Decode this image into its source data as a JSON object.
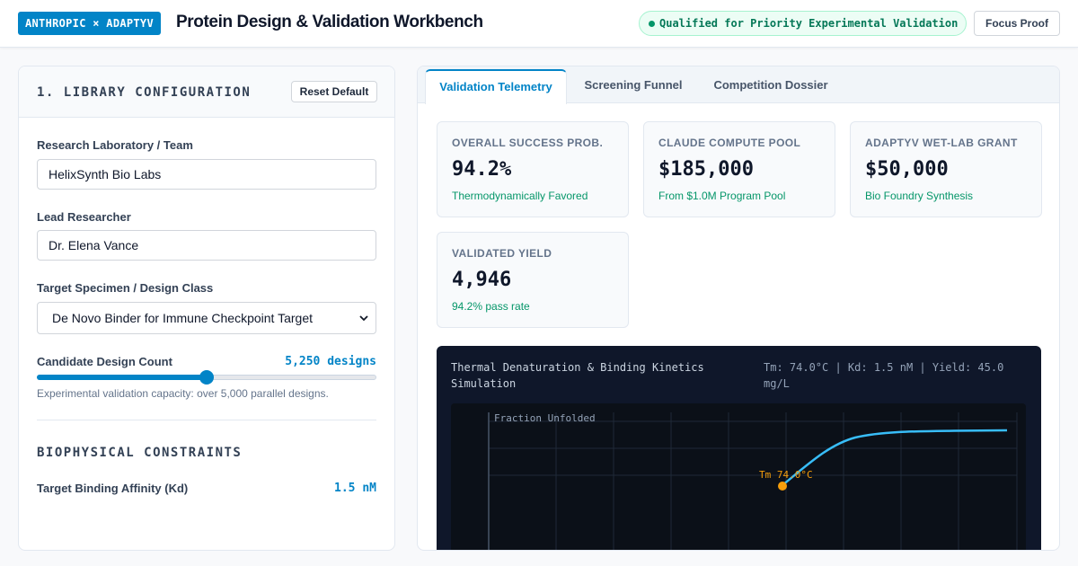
{
  "header": {
    "brand": "ANTHROPIC × ADAPTYV",
    "title": "Protein Design & Validation Workbench",
    "status": "Qualified for Priority Experimental Validation",
    "focus_label": "Focus Proof"
  },
  "library": {
    "title": "1. LIBRARY CONFIGURATION",
    "reset_label": "Reset Default",
    "team_label": "Research Laboratory / Team",
    "team_value": "HelixSynth Bio Labs",
    "researcher_label": "Lead Researcher",
    "researcher_value": "Dr. Elena Vance",
    "target_label": "Target Specimen / Design Class",
    "target_value": "De Novo Binder for Immune Checkpoint Target",
    "count_label": "Candidate Design Count",
    "count_value": "5,250 designs",
    "count_fraction": 0.5,
    "count_hint": "Experimental validation capacity: over 5,000 parallel designs.",
    "constraints_title": "BIOPHYSICAL CONSTRAINTS",
    "kd_label": "Target Binding Affinity (Kd)",
    "kd_value": "1.5 nM"
  },
  "tabs": [
    {
      "label": "Validation Telemetry",
      "active": true
    },
    {
      "label": "Screening Funnel",
      "active": false
    },
    {
      "label": "Competition Dossier",
      "active": false
    }
  ],
  "metrics": [
    {
      "label": "OVERALL SUCCESS PROB.",
      "value": "94.2%",
      "sub": "Thermodynamically Favored"
    },
    {
      "label": "CLAUDE COMPUTE POOL",
      "value": "$185,000",
      "sub": "From $1.0M Program Pool"
    },
    {
      "label": "ADAPTYV WET-LAB GRANT",
      "value": "$50,000",
      "sub": "Bio Foundry Synthesis"
    },
    {
      "label": "VALIDATED YIELD",
      "value": "4,946",
      "sub": "94.2% pass rate"
    }
  ],
  "simulation": {
    "title": "Thermal Denaturation & Binding Kinetics Simulation",
    "readout": "Tm: 74.0°C | Kd: 1.5 nM | Yield: 45.0 mg/L",
    "ylabel": "Fraction Unfolded",
    "tm_label": "Tm 74.0°C"
  },
  "colors": {
    "accent": "#0284c7",
    "success": "#059669",
    "curve": "#38bdf8",
    "tm_marker": "#f59e0b"
  }
}
